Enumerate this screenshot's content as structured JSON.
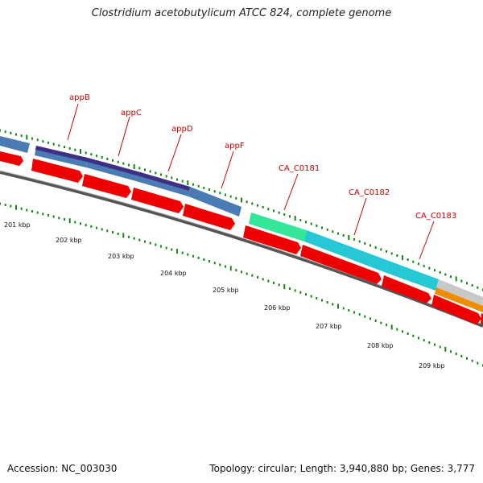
{
  "title": "Clostridium acetobutylicum ATCC 824, complete genome",
  "footer": {
    "accession": "Accession: NC_003030",
    "summary": "Topology: circular; Length: 3,940,880 bp; Genes: 3,777"
  },
  "colors": {
    "cds_red": "#ee0000",
    "backbone": "#777777",
    "tick_green": "#118811",
    "label_red": "#cc0000"
  },
  "gene_labels": [
    "appB",
    "appC",
    "appD",
    "appF",
    "CA_C0181",
    "CA_C0182",
    "CA_C0183"
  ],
  "kbp_labels": [
    "201 kbp",
    "202 kbp",
    "203 kbp",
    "204 kbp",
    "205 kbp",
    "206 kbp",
    "207 kbp",
    "208 kbp",
    "209 kbp"
  ]
}
